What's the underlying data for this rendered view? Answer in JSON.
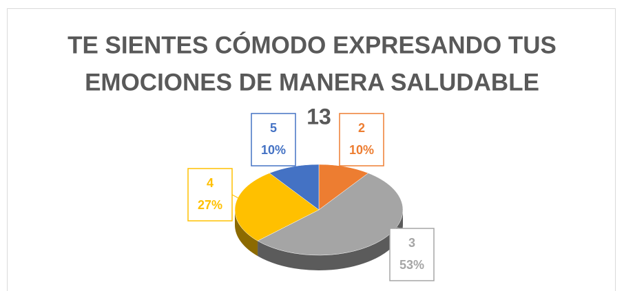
{
  "chart_data": {
    "type": "pie",
    "title": [
      "TE SIENTES CÓMODO EXPRESANDO TUS",
      "EMOCIONES DE MANERA SALUDABLE"
    ],
    "subtitle": "13",
    "categories": [
      "2",
      "3",
      "4",
      "5"
    ],
    "values": [
      10,
      53,
      27,
      10
    ],
    "value_labels": [
      "10%",
      "53%",
      "27%",
      "10%"
    ],
    "colors": [
      "#ed7d31",
      "#a5a5a5",
      "#ffc000",
      "#4472c4"
    ]
  }
}
